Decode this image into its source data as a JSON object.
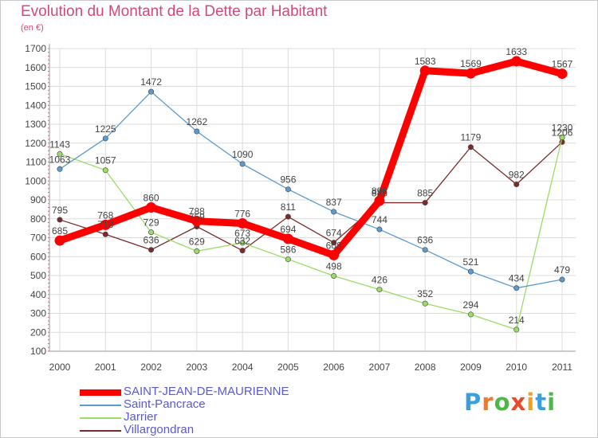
{
  "title": "Evolution du Montant de la Dette par Habitant",
  "subtitle": "(en €)",
  "logo": {
    "letters": [
      "P",
      "r",
      "o",
      "x",
      "i",
      "t",
      "i"
    ],
    "colors": [
      "#3aa0dc",
      "#f07a2a",
      "#4cb848",
      "#e84a2a",
      "#f0a020",
      "#3aa0dc",
      "#4cb848"
    ]
  },
  "chart_data": {
    "type": "line",
    "title": "Evolution du Montant de la Dette par Habitant",
    "subtitle": "(en €)",
    "x": [
      "2000",
      "2001",
      "2002",
      "2003",
      "2004",
      "2005",
      "2006",
      "2007",
      "2008",
      "2009",
      "2010",
      "2011"
    ],
    "ylim": [
      100,
      1700
    ],
    "yticks": [
      "100",
      "200",
      "300",
      "400",
      "500",
      "600",
      "700",
      "800",
      "900",
      "1000",
      "1100",
      "1200",
      "1300",
      "1400",
      "1500",
      "1600",
      "1700"
    ],
    "grid": true,
    "legend_position": "bottom-left",
    "series": [
      {
        "name": "Villargondran",
        "color": "#7a2a2a",
        "values": [
          795,
          718,
          636,
          759,
          632,
          811,
          674,
          885,
          885,
          1179,
          982,
          1206
        ]
      },
      {
        "name": "Jarrier",
        "color": "#99dd66",
        "values": [
          1143,
          1057,
          729,
          629,
          673,
          586,
          498,
          426,
          352,
          294,
          214,
          1230
        ]
      },
      {
        "name": "Saint-Pancrace",
        "color": "#5a9bd0",
        "values": [
          1063,
          1225,
          1472,
          1262,
          1090,
          956,
          837,
          744,
          636,
          521,
          434,
          479
        ]
      },
      {
        "name": "SAINT-JEAN-DE-MAURIENNE",
        "color": "#ff0000",
        "values": [
          685,
          768,
          860,
          788,
          776,
          694,
          608,
          895,
          1583,
          1569,
          1633,
          1567
        ]
      }
    ],
    "labels": [
      {
        "series": "SAINT-JEAN-DE-MAURIENNE",
        "text": [
          "685",
          "768",
          "860",
          "788",
          "776",
          "694",
          "608",
          "895",
          "1583",
          "1569",
          "1633",
          "1567"
        ]
      },
      {
        "series": "Saint-Pancrace",
        "text": [
          "1063",
          "1225",
          "1472",
          "1262",
          "1090",
          "956",
          "837",
          "744",
          "636",
          "521",
          "434",
          "479"
        ]
      },
      {
        "series": "Jarrier",
        "text": [
          "1143",
          "1057",
          "729",
          "629",
          "673",
          "586",
          "498",
          "426",
          "352",
          "294",
          "214",
          "1230"
        ]
      },
      {
        "series": "Villargondran",
        "text": [
          "795",
          "718",
          "636",
          "759",
          "632",
          "811",
          "674",
          "885",
          "885",
          "1179",
          "982",
          "1206"
        ]
      }
    ]
  },
  "legend": [
    {
      "name": "SAINT-JEAN-DE-MAURIENNE",
      "color": "#ff0000"
    },
    {
      "name": "Saint-Pancrace",
      "color": "#5a9bd0"
    },
    {
      "name": "Jarrier",
      "color": "#99dd66"
    },
    {
      "name": "Villargondran",
      "color": "#7a2a2a"
    }
  ]
}
